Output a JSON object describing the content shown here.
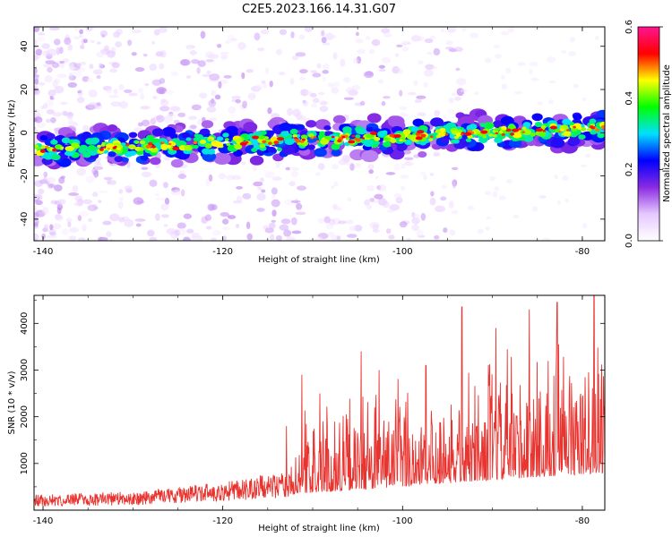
{
  "title": "C2E5.2023.166.14.31.G07",
  "chart_data": [
    {
      "type": "heatmap",
      "title": "C2E5.2023.166.14.31.G07",
      "xlabel": "Height of straight line (km)",
      "ylabel": "Frequency (Hz)",
      "xlim": [
        -141,
        -77.5
      ],
      "ylim": [
        -50,
        49
      ],
      "xticks": [
        -140,
        -120,
        -100,
        -80
      ],
      "xtick_labels": [
        "-140",
        "-120",
        "-100",
        "-80"
      ],
      "yticks": [
        -40,
        -20,
        0,
        20,
        40
      ],
      "ytick_labels": [
        "-40",
        "-20",
        "0",
        "20",
        "40"
      ],
      "band": {
        "description": "signal ridge from about -8 Hz near -140 km rising to about +2 Hz near -78 km",
        "center_freq_at_xmin": -8,
        "center_freq_at_xmax": 2,
        "half_width_hz": 5
      },
      "colorbar": {
        "label": "Normalized spectral amplitude",
        "range": [
          0.0,
          0.6
        ],
        "ticks": [
          0.0,
          0.2,
          0.4,
          0.6
        ],
        "tick_labels": [
          "0.0",
          "0.2",
          "0.4",
          "0.6"
        ],
        "colormap": [
          "#ffffff",
          "#e6c8ff",
          "#8a2be2",
          "#0000ff",
          "#00e0ff",
          "#00ff00",
          "#ffff00",
          "#ff0000",
          "#ff1493"
        ]
      }
    },
    {
      "type": "line",
      "xlabel": "Height of straight line (km)",
      "ylabel": "SNR (10 * v/v)",
      "xlim": [
        -141,
        -77.5
      ],
      "ylim": [
        0,
        4600
      ],
      "xticks": [
        -140,
        -120,
        -100,
        -80
      ],
      "xtick_labels": [
        "-140",
        "-120",
        "-100",
        "-80"
      ],
      "yticks": [
        1000,
        2000,
        3000,
        4000
      ],
      "ytick_labels": [
        "1000",
        "2000",
        "3000",
        "4000"
      ],
      "color": "#e8332f",
      "envelope": [
        {
          "x": -141,
          "base": 80,
          "amp": 250
        },
        {
          "x": -130,
          "base": 100,
          "amp": 300
        },
        {
          "x": -120,
          "base": 200,
          "amp": 400
        },
        {
          "x": -113,
          "base": 250,
          "amp": 600
        },
        {
          "x": -112,
          "base": 350,
          "amp": 1500
        },
        {
          "x": -100,
          "base": 500,
          "amp": 2000
        },
        {
          "x": -90,
          "base": 650,
          "amp": 2300
        },
        {
          "x": -77.5,
          "base": 800,
          "amp": 2600
        }
      ],
      "peaks": [
        {
          "x": -112.9,
          "y": 1800
        },
        {
          "x": -111.2,
          "y": 2900
        },
        {
          "x": -109.2,
          "y": 2500
        },
        {
          "x": -104.6,
          "y": 3400
        },
        {
          "x": -102.6,
          "y": 3000
        },
        {
          "x": -97.4,
          "y": 3100
        },
        {
          "x": -93.4,
          "y": 4350
        },
        {
          "x": -89.6,
          "y": 3900
        },
        {
          "x": -85.9,
          "y": 4300
        },
        {
          "x": -82.8,
          "y": 4450
        },
        {
          "x": -78.7,
          "y": 4600
        }
      ]
    }
  ]
}
